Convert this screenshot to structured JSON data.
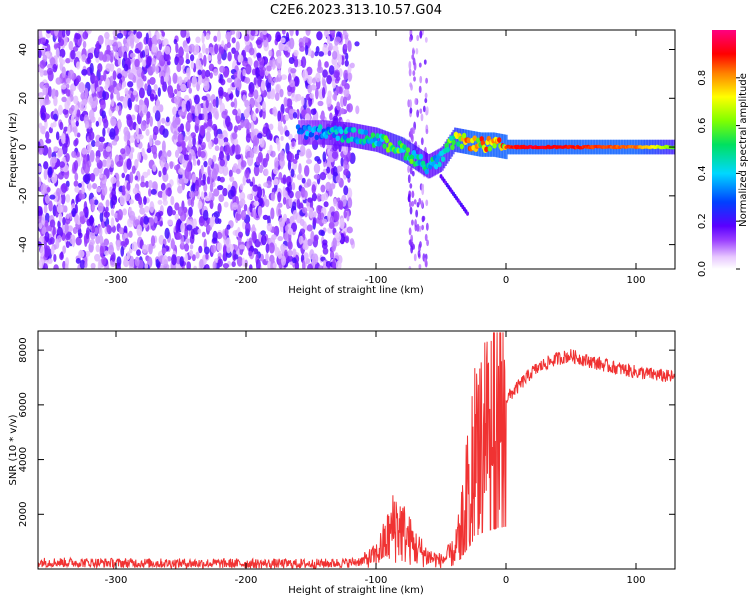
{
  "title": "C2E6.2023.313.10.57.G04",
  "chart_data": [
    {
      "type": "heatmap",
      "xlabel": "Height of straight line (km)",
      "ylabel": "Frequency (Hz)",
      "xlim": [
        -360,
        130
      ],
      "ylim": [
        -50,
        48
      ],
      "x_ticks": [
        -300,
        -200,
        -100,
        0,
        100
      ],
      "y_ticks": [
        -40,
        -20,
        0,
        20,
        40
      ],
      "grid": false,
      "colorbar": {
        "label": "Normalized spectral amplitude",
        "range": [
          0.0,
          1.0
        ],
        "ticks": [
          0.0,
          0.2,
          0.4,
          0.6,
          0.8
        ]
      },
      "ridge": {
        "x": [
          -160,
          -140,
          -120,
          -100,
          -80,
          -60,
          -50,
          -40,
          -30,
          -20,
          -10,
          0,
          20,
          60,
          100,
          130
        ],
        "freq_hz": [
          6,
          6,
          5,
          3,
          -1,
          -8,
          -5,
          3,
          2,
          1,
          1,
          0,
          0,
          0,
          0,
          0
        ],
        "amplitude": [
          0.35,
          0.45,
          0.5,
          0.55,
          0.65,
          0.5,
          0.55,
          0.7,
          0.85,
          0.9,
          0.95,
          0.9,
          0.95,
          0.9,
          0.85,
          0.6
        ]
      }
    },
    {
      "type": "line",
      "xlabel": "Height of straight line (km)",
      "ylabel": "SNR (10 * v/v)",
      "xlim": [
        -360,
        130
      ],
      "ylim": [
        0,
        8700
      ],
      "x_ticks": [
        -300,
        -200,
        -100,
        0,
        100
      ],
      "y_ticks": [
        2000,
        4000,
        6000,
        8000
      ],
      "grid": false,
      "line_color": "#f03232",
      "series": [
        {
          "x": [
            -360,
            -300,
            -200,
            -150,
            -120,
            -110,
            -100,
            -90,
            -85,
            -80,
            -70,
            -60,
            -50,
            -40,
            -35,
            -30,
            -25,
            -20,
            -15,
            -10,
            -5,
            0,
            10,
            20,
            30,
            40,
            50,
            60,
            80,
            100,
            130
          ],
          "y": [
            250,
            220,
            200,
            190,
            230,
            300,
            500,
            1200,
            1700,
            1400,
            800,
            450,
            300,
            600,
            1400,
            2800,
            4200,
            5200,
            5600,
            5800,
            6000,
            6200,
            6700,
            7200,
            7500,
            7700,
            7800,
            7650,
            7400,
            7200,
            7000
          ]
        }
      ]
    }
  ]
}
